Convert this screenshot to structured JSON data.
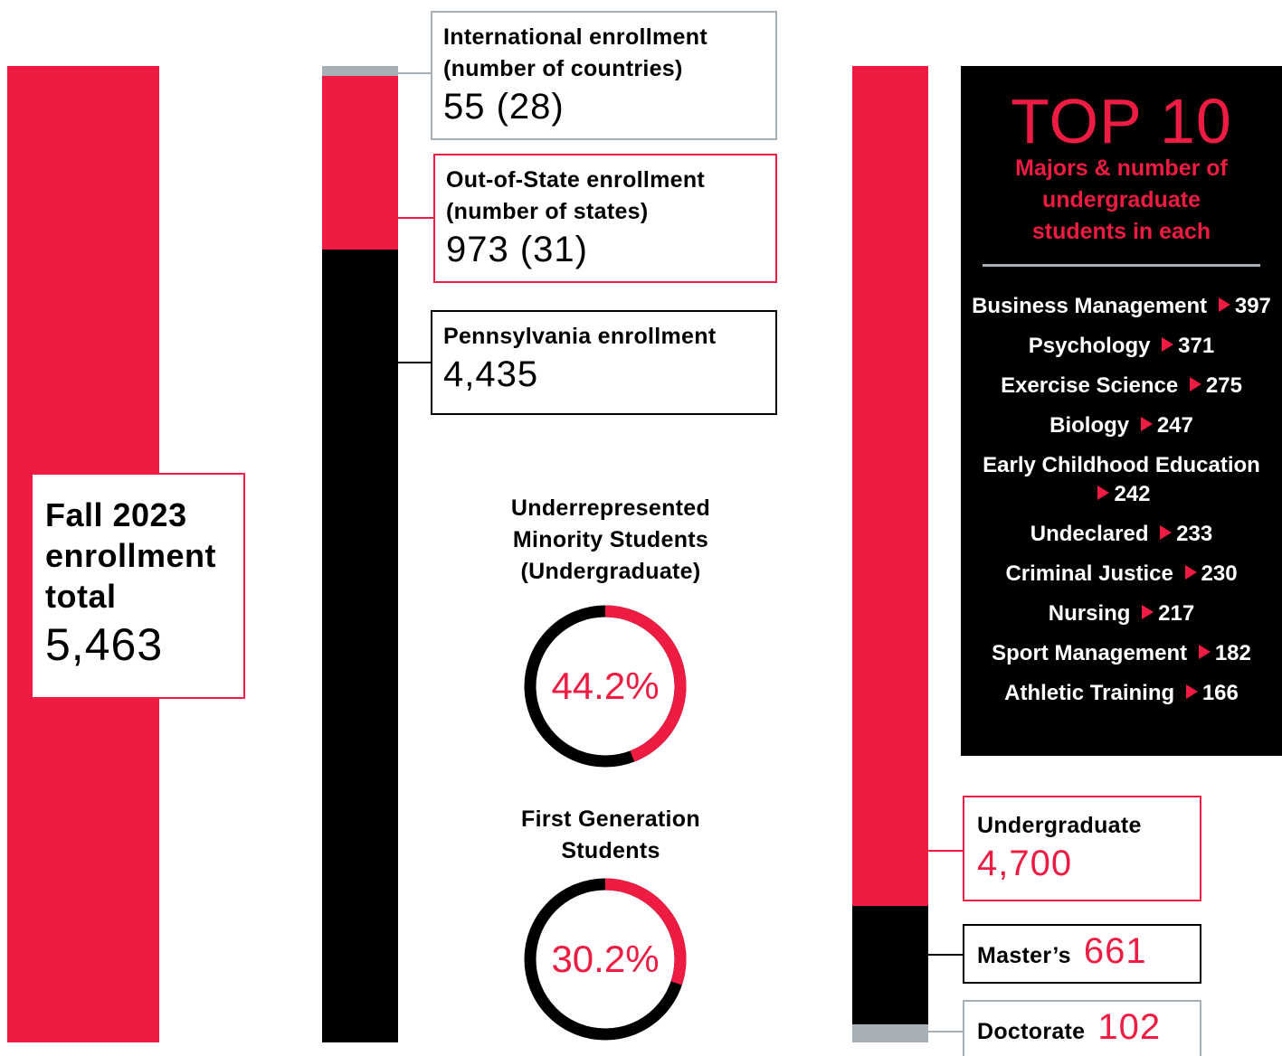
{
  "total": {
    "title": "Fall 2023 enrollment total",
    "value": 5463,
    "value_label": "5,463",
    "color": "#ee1c42"
  },
  "residency": {
    "segments": [
      {
        "title": "International enrollment (number of countries)",
        "value": 55,
        "places": 28,
        "value_label": "55 (28)",
        "color": "#a7b0b7"
      },
      {
        "title": "Out-of-State enrollment (number of states)",
        "value": 973,
        "places": 31,
        "value_label": "973 (31)",
        "color": "#ee1c42"
      },
      {
        "title": "Pennsylvania enrollment",
        "value": 4435,
        "value_label": "4,435",
        "color": "#000000"
      }
    ]
  },
  "donuts": [
    {
      "title": "Underrepresented Minority Students (Undergraduate)",
      "value": 44.2,
      "value_label": "44.2%",
      "color": "#ee1c42",
      "ring_color": "#000000"
    },
    {
      "title": "First Generation Students",
      "value": 30.2,
      "value_label": "30.2%",
      "color": "#ee1c42",
      "ring_color": "#000000"
    }
  ],
  "levels": {
    "segments": [
      {
        "title": "Undergraduate",
        "value": 4700,
        "value_label": "4,700",
        "color": "#ee1c42"
      },
      {
        "title": "Master’s",
        "value": 661,
        "color": "#000000"
      },
      {
        "title": "Doctorate",
        "value": 102,
        "color": "#a7b0b7"
      }
    ]
  },
  "top10": {
    "heading": "TOP 10",
    "subtitle": "Majors & number of undergraduate students in each",
    "majors": [
      {
        "name": "Business Management",
        "value": 397
      },
      {
        "name": "Psychology",
        "value": 371
      },
      {
        "name": "Exercise Science",
        "value": 275
      },
      {
        "name": "Biology",
        "value": 247
      },
      {
        "name": "Early Childhood Education",
        "value": 242
      },
      {
        "name": "Undeclared",
        "value": 233
      },
      {
        "name": "Criminal Justice",
        "value": 230
      },
      {
        "name": "Nursing",
        "value": 217
      },
      {
        "name": "Sport Management",
        "value": 182
      },
      {
        "name": "Athletic Training",
        "value": 166
      }
    ]
  }
}
